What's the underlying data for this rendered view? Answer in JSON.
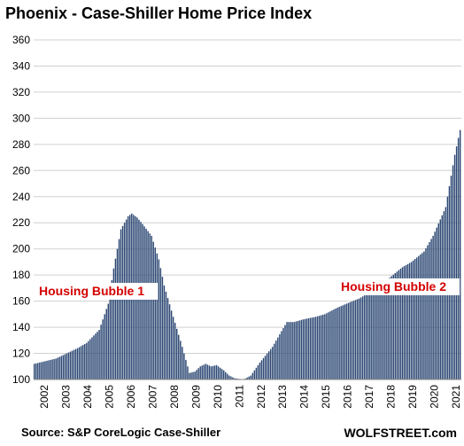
{
  "chart_data": {
    "type": "bar",
    "title": "Phoenix - Case-Shiller Home Price Index",
    "source": "Source: S&P CoreLogic Case-Shiller",
    "brand": "WOLFSTREET.com",
    "xlabel": "",
    "ylabel": "",
    "ylim": [
      100,
      360
    ],
    "yticks": [
      100,
      120,
      140,
      160,
      180,
      200,
      220,
      240,
      260,
      280,
      300,
      320,
      340,
      360
    ],
    "xticks": [
      "2002",
      "2003",
      "2004",
      "2005",
      "2006",
      "2007",
      "2008",
      "2009",
      "2010",
      "2011",
      "2012",
      "2013",
      "2014",
      "2015",
      "2016",
      "2017",
      "2018",
      "2019",
      "2020",
      "2021"
    ],
    "grid": true,
    "bar_color": "#2a4672",
    "annotations": [
      "Housing Bubble 1",
      "Housing Bubble 2"
    ],
    "series": [
      {
        "frequency": "monthly",
        "start": "2002-01",
        "anchors": [
          [
            "2002-01",
            112
          ],
          [
            "2003-01",
            116
          ],
          [
            "2004-01",
            124
          ],
          [
            "2004-06",
            128
          ],
          [
            "2005-01",
            138
          ],
          [
            "2005-06",
            158
          ],
          [
            "2005-09",
            185
          ],
          [
            "2006-01",
            215
          ],
          [
            "2006-05",
            225
          ],
          [
            "2006-07",
            227
          ],
          [
            "2006-10",
            224
          ],
          [
            "2007-01",
            219
          ],
          [
            "2007-06",
            210
          ],
          [
            "2007-10",
            192
          ],
          [
            "2008-01",
            172
          ],
          [
            "2008-06",
            148
          ],
          [
            "2008-11",
            125
          ],
          [
            "2009-03",
            105
          ],
          [
            "2009-06",
            106
          ],
          [
            "2009-09",
            110
          ],
          [
            "2009-12",
            112
          ],
          [
            "2010-03",
            110
          ],
          [
            "2010-06",
            111
          ],
          [
            "2010-10",
            107
          ],
          [
            "2011-01",
            103
          ],
          [
            "2011-04",
            101
          ],
          [
            "2011-09",
            100
          ],
          [
            "2012-01",
            103
          ],
          [
            "2012-06",
            113
          ],
          [
            "2013-01",
            125
          ],
          [
            "2013-06",
            137
          ],
          [
            "2013-09",
            144
          ],
          [
            "2014-01",
            144
          ],
          [
            "2014-06",
            146
          ],
          [
            "2015-01",
            148
          ],
          [
            "2015-06",
            150
          ],
          [
            "2016-01",
            155
          ],
          [
            "2016-06",
            158
          ],
          [
            "2017-01",
            162
          ],
          [
            "2017-06",
            166
          ],
          [
            "2018-01",
            169
          ],
          [
            "2018-06",
            178
          ],
          [
            "2019-01",
            186
          ],
          [
            "2019-06",
            190
          ],
          [
            "2020-01",
            198
          ],
          [
            "2020-06",
            210
          ],
          [
            "2021-01",
            232
          ],
          [
            "2021-03",
            248
          ],
          [
            "2021-06",
            272
          ],
          [
            "2021-08",
            285
          ],
          [
            "2021-09",
            291
          ]
        ]
      }
    ]
  }
}
